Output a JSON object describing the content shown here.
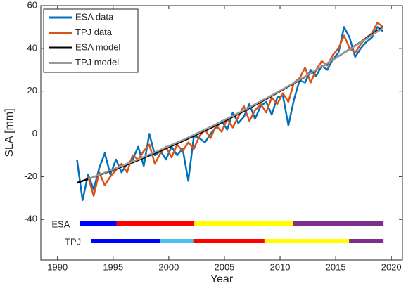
{
  "chart_data": {
    "type": "line",
    "xlabel": "Year",
    "ylabel": "SLA [mm]",
    "xlim": [
      1988.5,
      2021
    ],
    "ylim": [
      -59,
      60
    ],
    "xticks": [
      1990,
      1995,
      2000,
      2005,
      2010,
      2015,
      2020
    ],
    "yticks": [
      -40,
      -20,
      0,
      20,
      40,
      60
    ],
    "legend": "top-left",
    "series": [
      {
        "name": "ESA data",
        "color": "#0072bd",
        "x": [
          1991.75,
          1992.25,
          1992.75,
          1993.25,
          1993.75,
          1994.25,
          1994.75,
          1995.25,
          1995.75,
          1996.25,
          1996.75,
          1997.25,
          1997.75,
          1998.25,
          1998.75,
          1999.25,
          1999.75,
          2000.25,
          2000.75,
          2001.25,
          2001.75,
          2002.25,
          2002.75,
          2003.25,
          2003.75,
          2004.25,
          2004.75,
          2005.25,
          2005.75,
          2006.25,
          2006.75,
          2007.25,
          2007.75,
          2008.25,
          2008.75,
          2009.25,
          2009.75,
          2010.25,
          2010.75,
          2011.25,
          2011.75,
          2012.25,
          2012.75,
          2013.25,
          2013.75,
          2014.25,
          2014.75,
          2015.25,
          2015.75,
          2016.25,
          2016.75,
          2017.25,
          2017.75,
          2018.25,
          2018.75,
          2019.25
        ],
        "values": [
          -12,
          -31,
          -19,
          -26,
          -16,
          -9,
          -19,
          -12,
          -18,
          -14,
          -12,
          -6,
          -15,
          0,
          -10,
          -8,
          -12,
          -6,
          -10,
          -7,
          -22,
          -1,
          -2,
          -4,
          0,
          3,
          6,
          2,
          10,
          5,
          8,
          14,
          7,
          13,
          15,
          9,
          17,
          18,
          4,
          16,
          25,
          24,
          30,
          27,
          32,
          30,
          35,
          38,
          50,
          45,
          36,
          40,
          43,
          45,
          50,
          48
        ]
      },
      {
        "name": "TPJ data",
        "color": "#d95319",
        "x": [
          1991.75,
          1992.25,
          1992.75,
          1993.25,
          1993.75,
          1994.25,
          1994.75,
          1995.25,
          1995.75,
          1996.25,
          1996.75,
          1997.25,
          1997.75,
          1998.25,
          1998.75,
          1999.25,
          1999.75,
          2000.25,
          2000.75,
          2001.25,
          2001.75,
          2002.25,
          2002.75,
          2003.25,
          2003.75,
          2004.25,
          2004.75,
          2005.25,
          2005.75,
          2006.25,
          2006.75,
          2007.25,
          2007.75,
          2008.25,
          2008.75,
          2009.25,
          2009.75,
          2010.25,
          2010.75,
          2011.25,
          2011.75,
          2012.25,
          2012.75,
          2013.25,
          2013.75,
          2014.25,
          2014.75,
          2015.25,
          2015.75,
          2016.25,
          2016.75,
          2017.25,
          2017.75,
          2018.25,
          2018.75,
          2019.25
        ],
        "values": [
          null,
          null,
          -20,
          -29,
          -18,
          -24,
          -20,
          -17,
          -14,
          -18,
          -10,
          -12,
          -8,
          -5,
          -14,
          -9,
          -6,
          -11,
          -5,
          -8,
          -4,
          -7,
          -1,
          2,
          -2,
          4,
          1,
          7,
          3,
          8,
          13,
          6,
          11,
          14,
          10,
          17,
          14,
          19,
          15,
          24,
          26,
          31,
          24,
          30,
          34,
          32,
          37,
          40,
          46,
          40,
          38,
          42,
          45,
          47,
          52,
          50
        ]
      },
      {
        "name": "ESA model",
        "color": "#000000",
        "x": [
          1991.75,
          1994,
          1996.5,
          1999,
          2001.5,
          2004,
          2006.5,
          2009,
          2011.5,
          2014,
          2016.5,
          2019.25
        ],
        "values": [
          -22.9,
          -18.8,
          -13.9,
          -8.5,
          -2.8,
          3.4,
          10.0,
          17.0,
          24.4,
          32.2,
          40.4,
          49.9
        ]
      },
      {
        "name": "TPJ model",
        "color": "#999999",
        "x": [
          1992.75,
          1994,
          1996.5,
          1999,
          2001.5,
          2004,
          2006.5,
          2009,
          2011.5,
          2014,
          2016.5,
          2019.25
        ],
        "values": [
          -21.2,
          -18.6,
          -13.5,
          -8.0,
          -2.3,
          3.9,
          10.4,
          17.3,
          24.6,
          32.3,
          40.3,
          49.5
        ]
      }
    ],
    "missions": [
      {
        "label": "ESA",
        "segments": [
          {
            "start": 1992,
            "end": 1995.3,
            "color": "#0000ff"
          },
          {
            "start": 1995.3,
            "end": 2002.3,
            "color": "#ff0000"
          },
          {
            "start": 2002.3,
            "end": 2011.2,
            "color": "#ffff00"
          },
          {
            "start": 2011.2,
            "end": 2019.3,
            "color": "#7e2f8e"
          }
        ]
      },
      {
        "label": "TPJ",
        "segments": [
          {
            "start": 1993,
            "end": 1999.2,
            "color": "#0000ff"
          },
          {
            "start": 1999.2,
            "end": 2002.2,
            "color": "#4dbeee"
          },
          {
            "start": 2002.2,
            "end": 2008.6,
            "color": "#ff0000"
          },
          {
            "start": 2008.6,
            "end": 2016.2,
            "color": "#ffff00"
          },
          {
            "start": 2016.2,
            "end": 2019.3,
            "color": "#7e2f8e"
          }
        ]
      }
    ]
  }
}
